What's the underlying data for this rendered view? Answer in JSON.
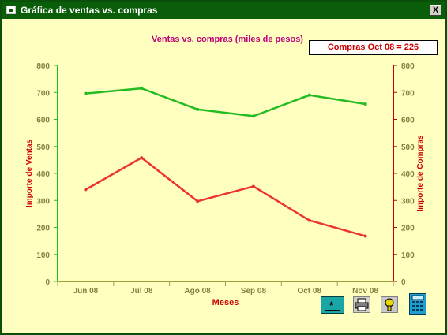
{
  "window": {
    "title": "Gráfica de ventas vs. compras",
    "close_label": "X"
  },
  "chart_title": "Ventas vs. compras (miles de pesos)",
  "info_box": "Compras Oct 08 = 226",
  "toolbar": {
    "new_label": "*",
    "icons": [
      "new-chart-icon",
      "printer-icon",
      "help-question-icon",
      "calculator-icon"
    ]
  },
  "chart_data": {
    "type": "line",
    "categories": [
      "Jun 08",
      "Jul 08",
      "Ago 08",
      "Sep 08",
      "Oct 08",
      "Nov 08"
    ],
    "series": [
      {
        "name": "Importe de Ventas",
        "values": [
          696,
          715,
          637,
          612,
          690,
          657
        ],
        "color": "#22bb22"
      },
      {
        "name": "Importe de Compras",
        "values": [
          340,
          458,
          297,
          352,
          226,
          168
        ],
        "color": "#ee3333"
      }
    ],
    "xlabel": "Meses",
    "ylabel_left": "Importe de Ventas",
    "ylabel_right": "Importe de Compras",
    "ylim": [
      0,
      800
    ],
    "yticks": [
      0,
      100,
      200,
      300,
      400,
      500,
      600,
      700,
      800
    ],
    "left_axis_color": "#22bb22",
    "right_axis_color": "#cc0000",
    "label_color": "#cc0000",
    "tick_text_color": "#808040",
    "grid": false
  }
}
